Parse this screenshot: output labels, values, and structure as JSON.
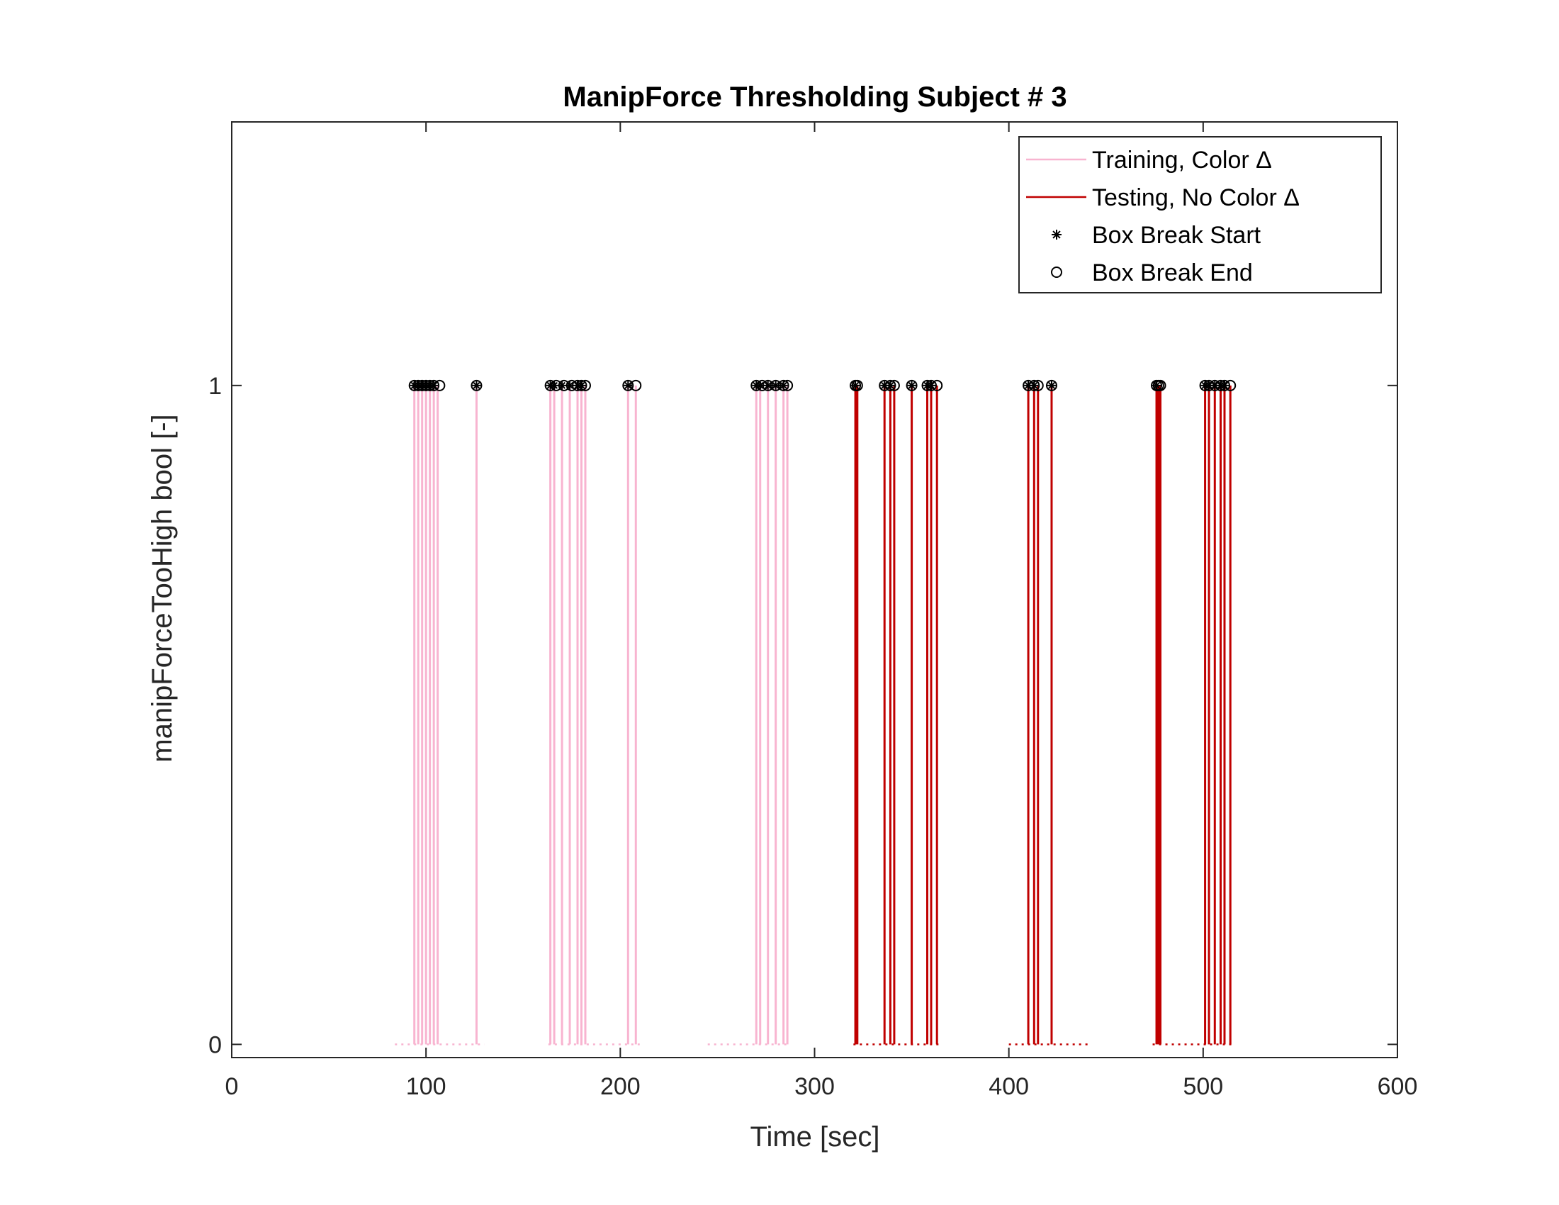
{
  "chart_data": {
    "type": "line",
    "title": "ManipForce Thresholding Subject # 3",
    "xlabel": "Time [sec]",
    "ylabel": "manipForceTooHigh bool [-]",
    "xlim": [
      0,
      600
    ],
    "ylim": [
      -0.02,
      1.4
    ],
    "xticks": [
      0,
      100,
      200,
      300,
      400,
      500,
      600
    ],
    "xtick_labels": [
      "0",
      "100",
      "200",
      "300",
      "400",
      "500",
      "600"
    ],
    "yticks": [
      0,
      1
    ],
    "ytick_labels": [
      "0",
      "1"
    ],
    "grid": false,
    "legend_position": "top-right",
    "colors": {
      "training": "#f8b4d0",
      "testing": "#c00000",
      "markers": "#000000",
      "axes": "#262626"
    },
    "series": [
      {
        "name": "Training, Color Δ",
        "style": "line",
        "baseline_segments": [
          [
            84,
            130
          ],
          [
            163,
            210
          ],
          [
            245,
            287
          ]
        ],
        "spikes": [
          94,
          96,
          98,
          100,
          102,
          104,
          106,
          126,
          164,
          166,
          170,
          174,
          178,
          180,
          182,
          204,
          208,
          270,
          272,
          276,
          280,
          284,
          286
        ]
      },
      {
        "name": "Testing, No Color Δ",
        "style": "line",
        "baseline_segments": [
          [
            320,
            364
          ],
          [
            400,
            441
          ],
          [
            474,
            516
          ]
        ],
        "spikes": [
          321,
          322,
          336,
          339,
          341,
          350,
          358,
          360,
          363,
          410,
          413,
          415,
          422,
          476,
          477,
          478,
          501,
          503,
          506,
          509,
          511,
          514
        ]
      },
      {
        "name": "Box Break Start",
        "style": "marker-asterisk",
        "x": [
          94,
          96,
          98,
          100,
          102,
          104,
          126,
          164,
          166,
          170,
          174,
          178,
          180,
          204,
          270,
          272,
          276,
          280,
          284,
          321,
          336,
          339,
          350,
          358,
          360,
          410,
          413,
          422,
          476,
          501,
          503,
          506,
          509,
          511
        ],
        "y_value": 1
      },
      {
        "name": "Box Break End",
        "style": "marker-circle",
        "x": [
          94,
          96,
          98,
          100,
          102,
          104,
          107,
          126,
          164,
          167,
          171,
          175,
          178,
          180,
          182,
          204,
          208,
          270,
          273,
          276,
          280,
          284,
          286,
          321,
          322,
          336,
          339,
          341,
          350,
          358,
          360,
          363,
          410,
          413,
          415,
          422,
          476,
          477,
          478,
          501,
          503,
          506,
          509,
          511,
          514
        ],
        "y_value": 1
      }
    ],
    "legend_entries": [
      "Training, Color Δ",
      "Testing, No Color Δ",
      "Box Break Start",
      "Box Break End"
    ]
  }
}
